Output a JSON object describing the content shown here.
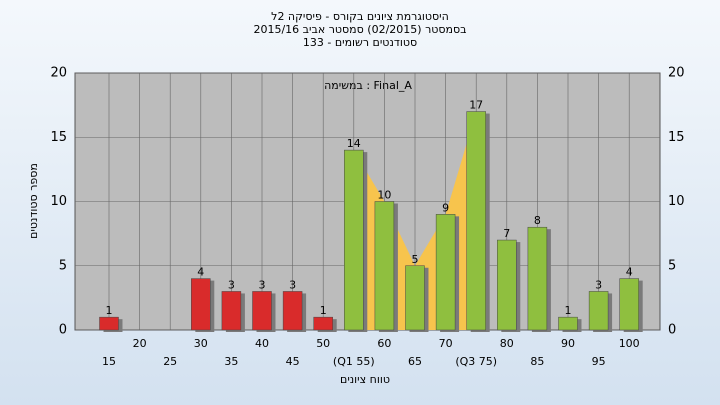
{
  "chart_data": {
    "type": "bar",
    "title": "היסטוגרמת ציונים בקורס - פיסיקה 2ל",
    "subtitle": "בסמסטר  (02/2015)  סמסטר אביב 2015/16",
    "subtitle2": "סטודנטים רשומים - 133",
    "annotation": "במשימה : Final_A",
    "x_label": "טווח ציונים",
    "y_label": "מספר סטודנטים",
    "categories": [
      "15",
      "20",
      "25",
      "30",
      "35",
      "40",
      "45",
      "50",
      "(Q1 55)",
      "60",
      "65",
      "70",
      "(Q3 75)",
      "80",
      "85",
      "90",
      "95",
      "100"
    ],
    "values": [
      1,
      0,
      0,
      4,
      3,
      3,
      3,
      1,
      14,
      10,
      5,
      9,
      17,
      7,
      8,
      1,
      3,
      4
    ],
    "colors": [
      "#d92b2b",
      "#d92b2b",
      "#d92b2b",
      "#d92b2b",
      "#d92b2b",
      "#d92b2b",
      "#d92b2b",
      "#d92b2b",
      "#8fbf3f",
      "#8fbf3f",
      "#8fbf3f",
      "#8fbf3f",
      "#8fbf3f",
      "#8fbf3f",
      "#8fbf3f",
      "#8fbf3f",
      "#8fbf3f",
      "#8fbf3f"
    ],
    "ylim": [
      0,
      20
    ],
    "yticks": [
      0,
      5,
      10,
      15,
      20
    ],
    "grid": true
  }
}
